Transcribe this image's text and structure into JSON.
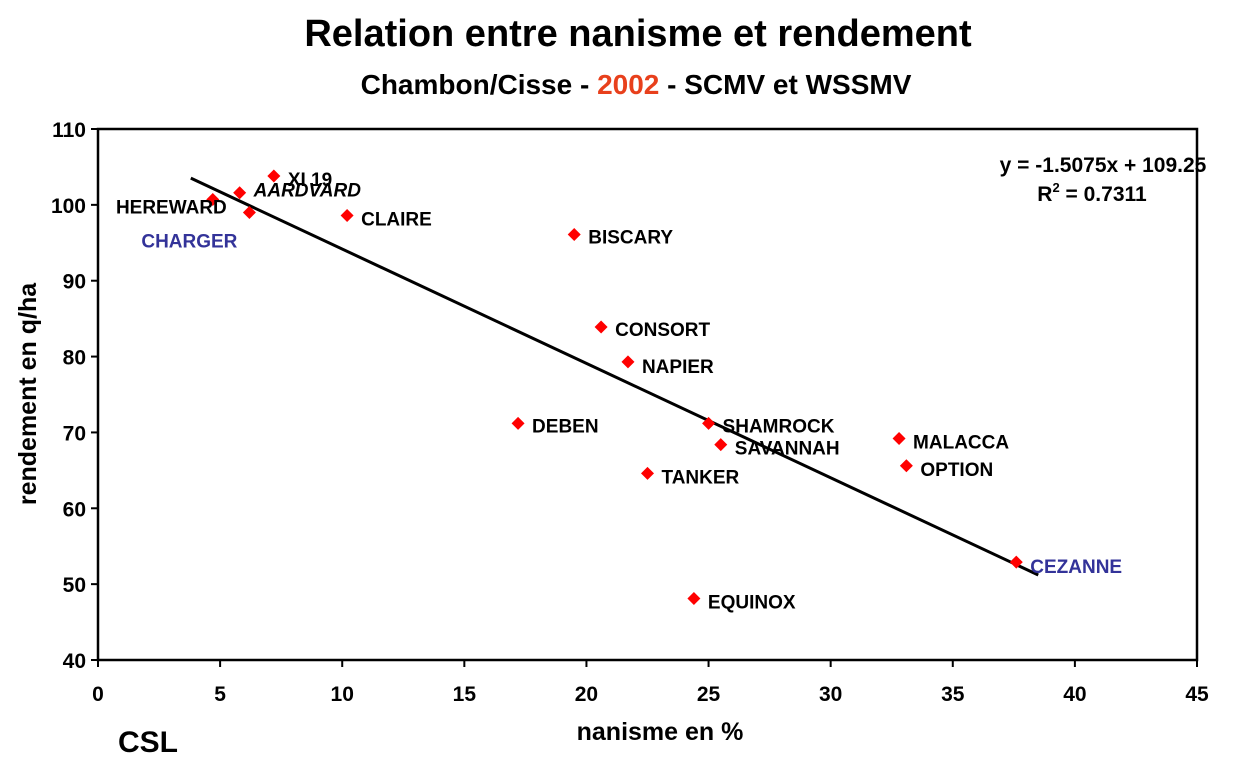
{
  "chart_data": {
    "type": "scatter",
    "title": "Relation entre nanisme et rendement",
    "subtitle_parts": [
      "Chambon/Cisse - ",
      "2002",
      " - SCMV et WSSMV"
    ],
    "xlabel": "nanisme en %",
    "ylabel": "rendement en q/ha",
    "xlim": [
      0,
      45
    ],
    "ylim": [
      40,
      110
    ],
    "xticks": [
      0,
      5,
      10,
      15,
      20,
      25,
      30,
      35,
      40,
      45
    ],
    "yticks": [
      40,
      50,
      60,
      70,
      80,
      90,
      100,
      110
    ],
    "grid": false,
    "points": [
      {
        "label": "XI 19",
        "x": 7.2,
        "y": 103.8
      },
      {
        "label": "AARDVARD",
        "x": 5.8,
        "y": 101.6
      },
      {
        "label": "HEREWARD",
        "x": 4.7,
        "y": 100.7
      },
      {
        "label": "CHARGER",
        "x": 6.2,
        "y": 99.0
      },
      {
        "label": "CLAIRE",
        "x": 10.2,
        "y": 98.6
      },
      {
        "label": "BISCARY",
        "x": 19.5,
        "y": 96.1
      },
      {
        "label": "CONSORT",
        "x": 20.6,
        "y": 83.9
      },
      {
        "label": "NAPIER",
        "x": 21.7,
        "y": 79.3
      },
      {
        "label": "DEBEN",
        "x": 17.2,
        "y": 71.2
      },
      {
        "label": "SHAMROCK",
        "x": 25.0,
        "y": 71.2
      },
      {
        "label": "SAVANNAH",
        "x": 25.5,
        "y": 68.4
      },
      {
        "label": "TANKER",
        "x": 22.5,
        "y": 64.6
      },
      {
        "label": "MALACCA",
        "x": 32.8,
        "y": 69.2
      },
      {
        "label": "OPTION",
        "x": 33.1,
        "y": 65.6
      },
      {
        "label": "CEZANNE",
        "x": 37.6,
        "y": 52.9
      },
      {
        "label": "EQUINOX",
        "x": 24.4,
        "y": 48.1
      }
    ],
    "trendline": {
      "slope": -1.5075,
      "intercept": 109.25,
      "x_range": [
        3.8,
        38.5
      ],
      "equation": "y = -1.5075x + 109.25",
      "r2_prefix": "R",
      "r2_exp": "2",
      "r2_value": " = 0.7311"
    }
  },
  "footer": {
    "logo_text": "CSL"
  },
  "colors": {
    "marker": "#ff0000",
    "subtitle_year": "#e8401c",
    "blue_label": "#333399",
    "text": "#000000"
  }
}
